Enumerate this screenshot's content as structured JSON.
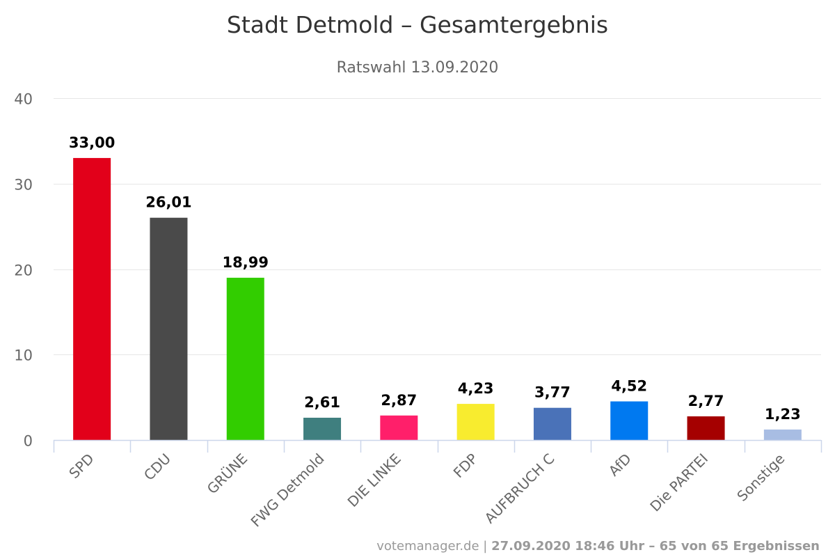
{
  "chart_data": {
    "type": "bar",
    "title": "Stadt Detmold – Gesamtergebnis",
    "subtitle": "Ratswahl 13.09.2020",
    "categories": [
      "SPD",
      "CDU",
      "GRÜNE",
      "FWG Detmold",
      "DIE LINKE",
      "FDP",
      "AUFBRUCH C",
      "AfD",
      "Die PARTEI",
      "Sonstige"
    ],
    "values": [
      33.0,
      26.01,
      18.99,
      2.61,
      2.87,
      4.23,
      3.77,
      4.52,
      2.77,
      1.23
    ],
    "value_labels": [
      "33,00",
      "26,01",
      "18,99",
      "2,61",
      "2,87",
      "4,23",
      "3,77",
      "4,52",
      "2,77",
      "1,23"
    ],
    "colors": [
      "#e2001a",
      "#4a4a4a",
      "#32cd00",
      "#3f7f7f",
      "#ff1f6a",
      "#f8ec2f",
      "#4a72b8",
      "#0079f0",
      "#a50000",
      "#a8bde3"
    ],
    "ylim": [
      0,
      40
    ],
    "yticks": [
      0,
      10,
      20,
      30,
      40
    ],
    "ytick_labels": [
      "0",
      "10",
      "20",
      "30",
      "40"
    ],
    "grid": true,
    "xlabel": "",
    "ylabel": ""
  },
  "credits": {
    "source": "votemanager.de",
    "separator": " | ",
    "detail": "27.09.2020 18:46 Uhr – 65 von 65 Ergebnissen"
  },
  "colors": {
    "gridline": "#e6e6e6",
    "axis": "#ccd6eb",
    "title": "#333333",
    "subtitle": "#666666"
  }
}
